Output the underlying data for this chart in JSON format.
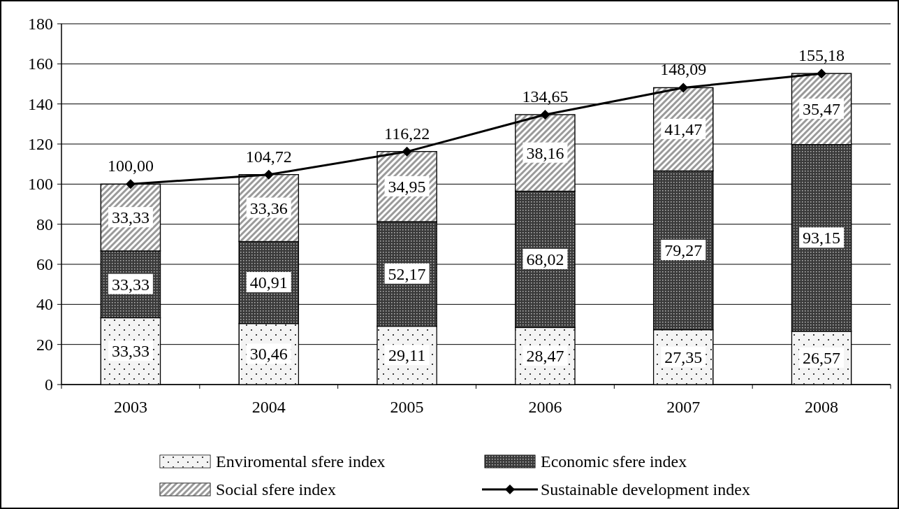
{
  "chart_data": {
    "type": "bar",
    "stacked": true,
    "categories": [
      "2003",
      "2004",
      "2005",
      "2006",
      "2007",
      "2008"
    ],
    "series": [
      {
        "name": "Enviromental sfere index",
        "color": "#f4f4f4",
        "values": [
          33.33,
          30.46,
          29.11,
          28.47,
          27.35,
          26.57
        ],
        "value_labels": [
          "33,33",
          "30,46",
          "29,11",
          "28,47",
          "27,35",
          "26,57"
        ]
      },
      {
        "name": "Economic sfere index",
        "color": "#3a3a3a",
        "values": [
          33.33,
          40.91,
          52.17,
          68.02,
          79.27,
          93.15
        ],
        "value_labels": [
          "33,33",
          "40,91",
          "52,17",
          "68,02",
          "79,27",
          "93,15"
        ]
      },
      {
        "name": "Social sfere index",
        "color": "#9a9a9a",
        "values": [
          33.33,
          33.36,
          34.95,
          38.16,
          41.47,
          35.47
        ],
        "value_labels": [
          "33,33",
          "33,36",
          "34,95",
          "38,16",
          "41,47",
          "35,47"
        ]
      },
      {
        "name": "Sustainable development index",
        "type": "line",
        "color": "#000000",
        "marker": "diamond",
        "values": [
          100.0,
          104.72,
          116.22,
          134.65,
          148.09,
          155.18
        ],
        "value_labels": [
          "100,00",
          "104,72",
          "116,22",
          "134,65",
          "148,09",
          "155,18"
        ]
      }
    ],
    "ylim": [
      0,
      180
    ],
    "yticks": [
      0,
      20,
      40,
      60,
      80,
      100,
      120,
      140,
      160,
      180
    ],
    "grid": "y",
    "legend": "bottom"
  }
}
